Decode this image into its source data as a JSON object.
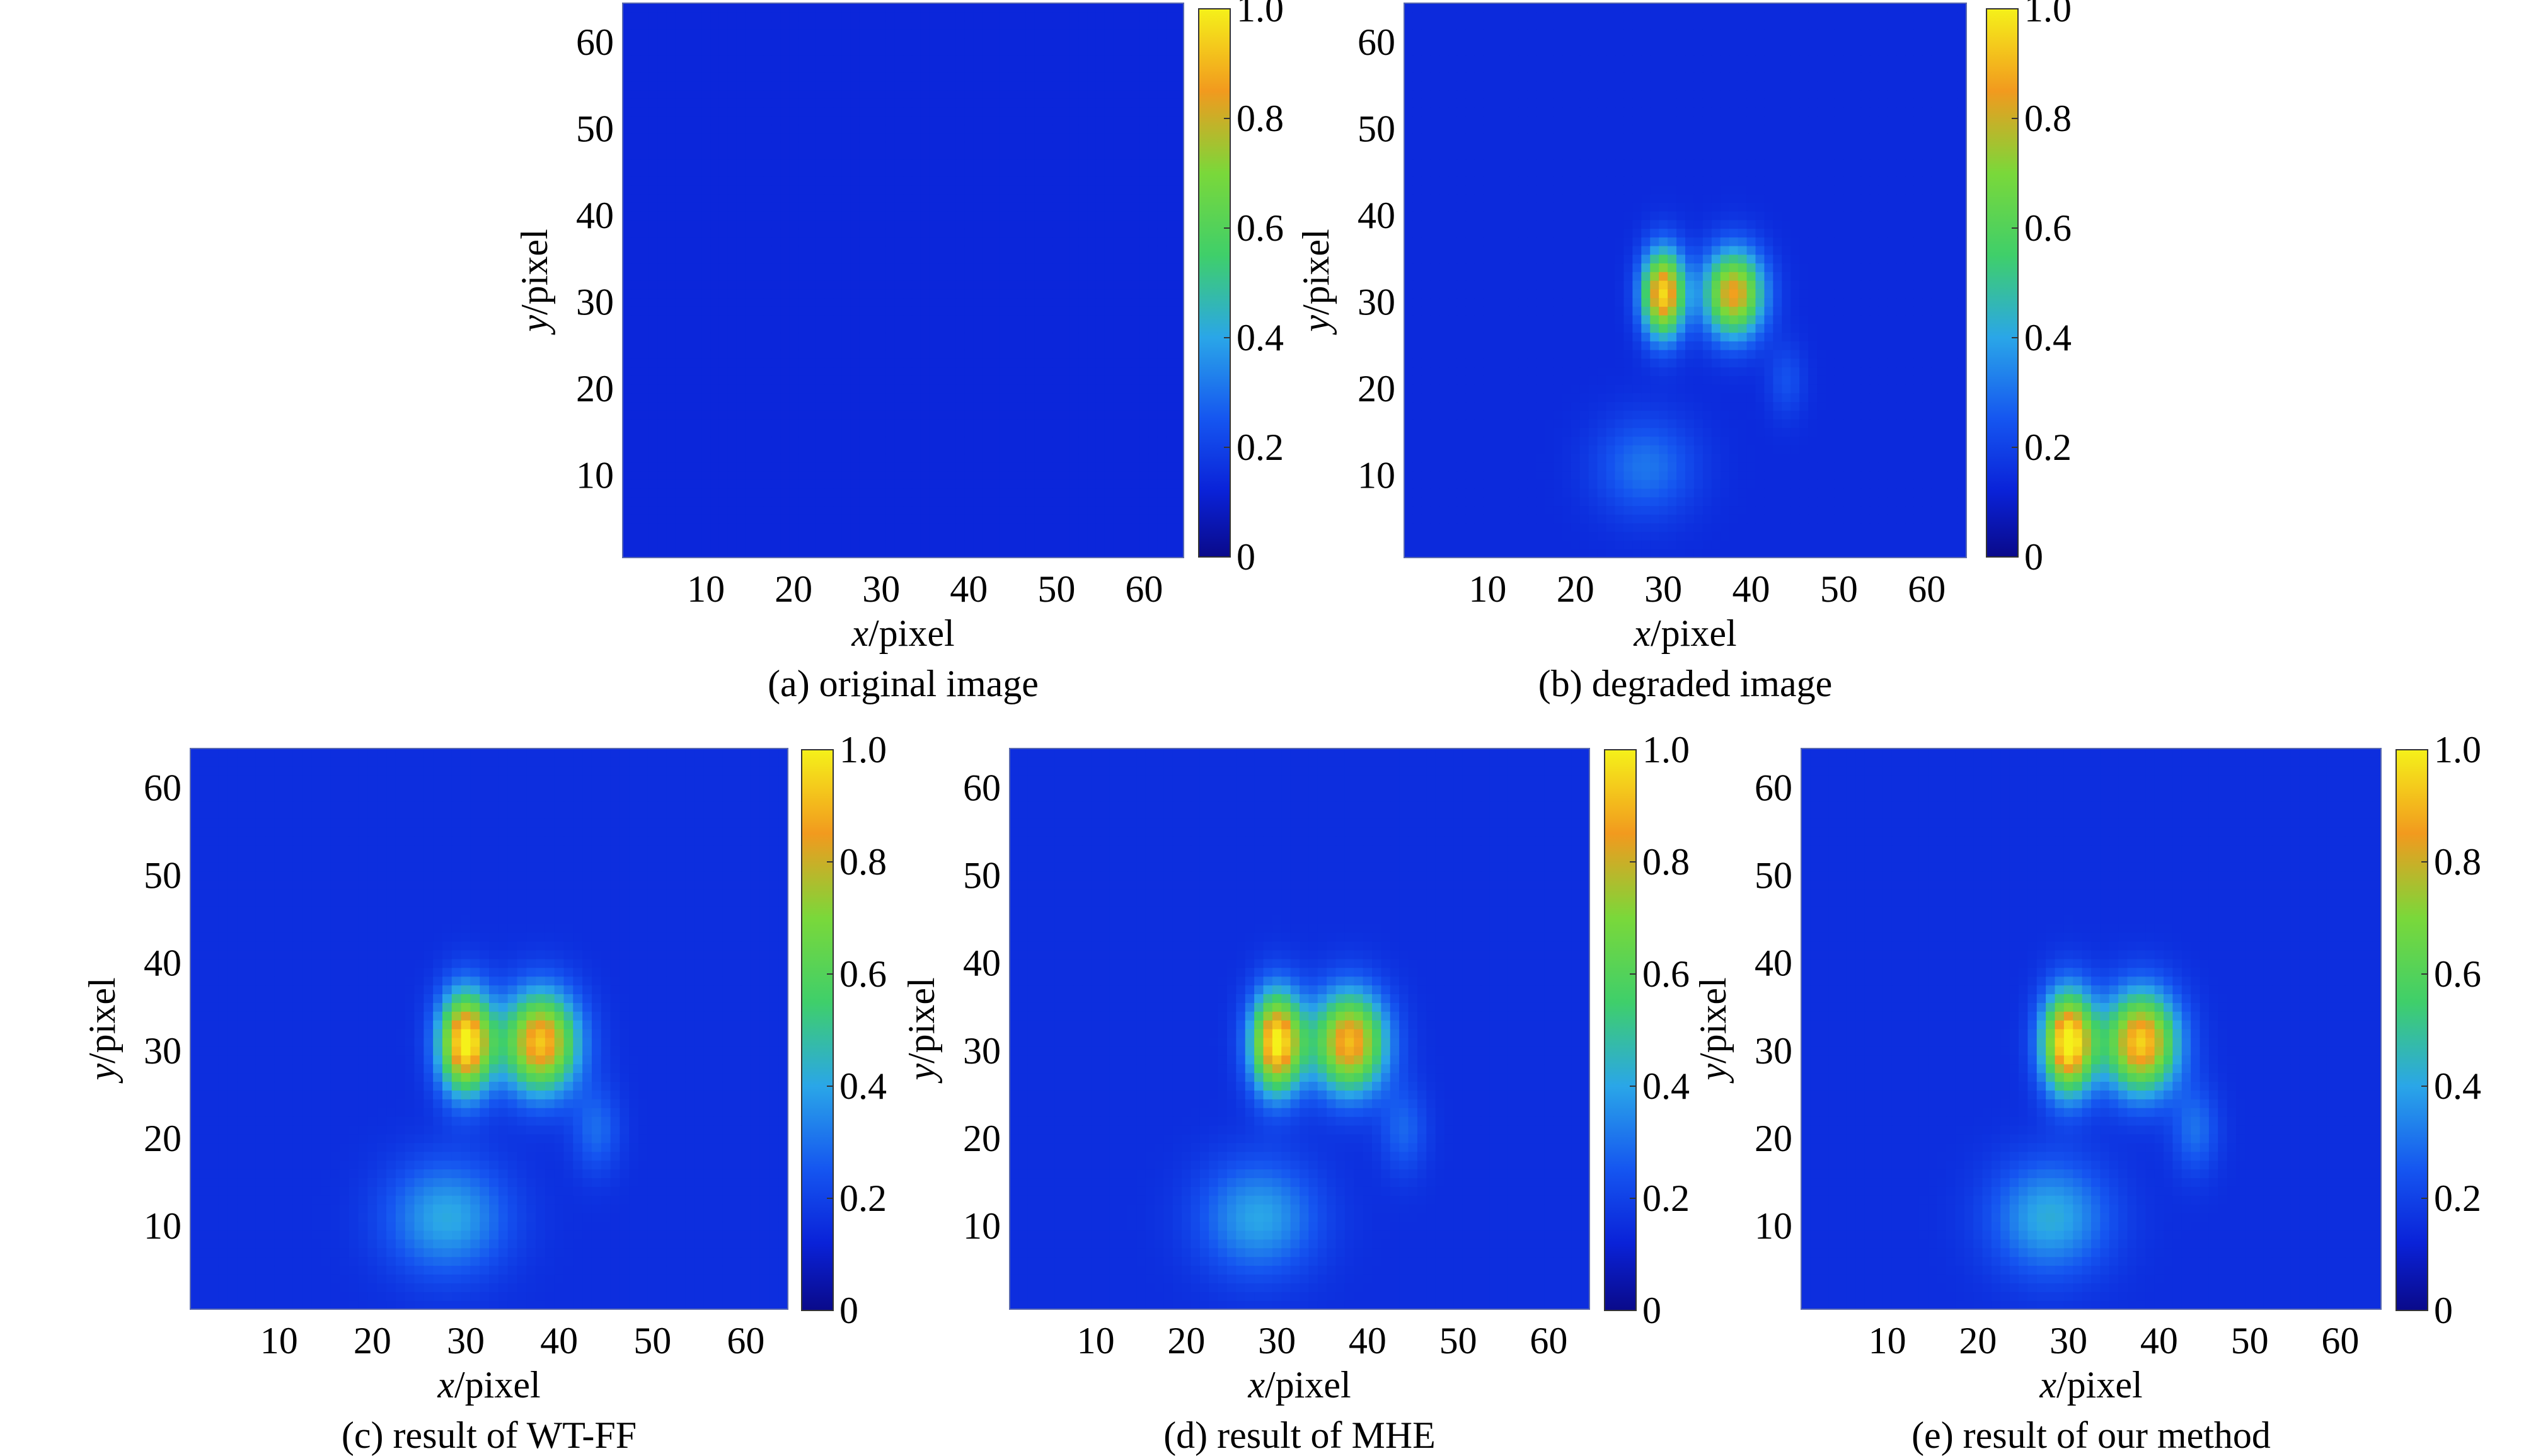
{
  "colormap": [
    {
      "stop": 0.0,
      "color": "#0a0a8a"
    },
    {
      "stop": 0.12,
      "color": "#0a22d8"
    },
    {
      "stop": 0.25,
      "color": "#1555f0"
    },
    {
      "stop": 0.4,
      "color": "#2aa6e8"
    },
    {
      "stop": 0.55,
      "color": "#3fcf6a"
    },
    {
      "stop": 0.7,
      "color": "#7ad83a"
    },
    {
      "stop": 0.85,
      "color": "#f29a1e"
    },
    {
      "stop": 1.0,
      "color": "#f5f11a"
    }
  ],
  "chart_data": [
    {
      "type": "heatmap",
      "caption": "(a) original image",
      "xlabel_italic": "x",
      "xlabel_rest": "/pixel",
      "ylabel_italic": "y",
      "ylabel_rest": "/pixel",
      "xticks": [
        "10",
        "20",
        "30",
        "40",
        "50",
        "60"
      ],
      "yticks": [
        "10",
        "20",
        "30",
        "40",
        "50",
        "60"
      ],
      "xlim": [
        0.5,
        64.5
      ],
      "ylim": [
        0.5,
        64.5
      ],
      "colorbar_ticks": [
        "0",
        "0.2",
        "0.4",
        "0.6",
        "0.8",
        "1.0"
      ],
      "colorbar_range": [
        0,
        1
      ],
      "background_level": 0.13,
      "blobs": []
    },
    {
      "type": "heatmap",
      "caption": "(b) degraded image",
      "xlabel_italic": "x",
      "xlabel_rest": "/pixel",
      "ylabel_italic": "y",
      "ylabel_rest": "/pixel",
      "xticks": [
        "10",
        "20",
        "30",
        "40",
        "50",
        "60"
      ],
      "yticks": [
        "10",
        "20",
        "30",
        "40",
        "50",
        "60"
      ],
      "xlim": [
        0.5,
        64.5
      ],
      "ylim": [
        0.5,
        64.5
      ],
      "colorbar_ticks": [
        "0",
        "0.2",
        "0.4",
        "0.6",
        "0.8",
        "1.0"
      ],
      "colorbar_range": [
        0,
        1
      ],
      "background_level": 0.14,
      "blobs": [
        {
          "x": 30,
          "y": 31,
          "sx": 1.7,
          "sy": 3.5,
          "peak": 0.82
        },
        {
          "x": 38,
          "y": 31,
          "sx": 2.4,
          "sy": 3.5,
          "peak": 0.72
        },
        {
          "x": 28,
          "y": 11,
          "sx": 4.0,
          "sy": 4.0,
          "peak": 0.17
        },
        {
          "x": 44,
          "y": 21,
          "sx": 1.5,
          "sy": 3.0,
          "peak": 0.1
        }
      ]
    },
    {
      "type": "heatmap",
      "caption": "(c) result of WT-FF",
      "xlabel_italic": "x",
      "xlabel_rest": "/pixel",
      "ylabel_italic": "y",
      "ylabel_rest": "/pixel",
      "xticks": [
        "10",
        "20",
        "30",
        "40",
        "50",
        "60"
      ],
      "yticks": [
        "10",
        "20",
        "30",
        "40",
        "50",
        "60"
      ],
      "xlim": [
        0.5,
        64.5
      ],
      "ylim": [
        0.5,
        64.5
      ],
      "colorbar_ticks": [
        "0",
        "0.2",
        "0.4",
        "0.6",
        "0.8",
        "1.0"
      ],
      "colorbar_range": [
        0,
        1
      ],
      "background_level": 0.15,
      "blobs": [
        {
          "x": 30,
          "y": 31,
          "sx": 2.0,
          "sy": 4.0,
          "peak": 0.88
        },
        {
          "x": 38,
          "y": 31,
          "sx": 2.8,
          "sy": 4.0,
          "peak": 0.78
        },
        {
          "x": 28,
          "y": 11,
          "sx": 4.5,
          "sy": 4.5,
          "peak": 0.26
        },
        {
          "x": 44,
          "y": 21,
          "sx": 1.8,
          "sy": 3.5,
          "peak": 0.14
        }
      ]
    },
    {
      "type": "heatmap",
      "caption": "(d) result of MHE",
      "xlabel_italic": "x",
      "xlabel_rest": "/pixel",
      "ylabel_italic": "y",
      "ylabel_rest": "/pixel",
      "xticks": [
        "10",
        "20",
        "30",
        "40",
        "50",
        "60"
      ],
      "yticks": [
        "10",
        "20",
        "30",
        "40",
        "50",
        "60"
      ],
      "xlim": [
        0.5,
        64.5
      ],
      "ylim": [
        0.5,
        64.5
      ],
      "colorbar_ticks": [
        "0",
        "0.2",
        "0.4",
        "0.6",
        "0.8",
        "1.0"
      ],
      "colorbar_range": [
        0,
        1
      ],
      "background_level": 0.15,
      "blobs": [
        {
          "x": 30,
          "y": 31,
          "sx": 2.0,
          "sy": 4.0,
          "peak": 0.86
        },
        {
          "x": 38,
          "y": 31,
          "sx": 2.8,
          "sy": 4.0,
          "peak": 0.76
        },
        {
          "x": 28,
          "y": 11,
          "sx": 4.5,
          "sy": 4.5,
          "peak": 0.25
        },
        {
          "x": 44,
          "y": 21,
          "sx": 1.8,
          "sy": 3.5,
          "peak": 0.13
        }
      ]
    },
    {
      "type": "heatmap",
      "caption": "(e) result of our method",
      "xlabel_italic": "x",
      "xlabel_rest": "/pixel",
      "ylabel_italic": "y",
      "ylabel_rest": "/pixel",
      "xticks": [
        "10",
        "20",
        "30",
        "40",
        "50",
        "60"
      ],
      "yticks": [
        "10",
        "20",
        "30",
        "40",
        "50",
        "60"
      ],
      "xlim": [
        0.5,
        64.5
      ],
      "ylim": [
        0.5,
        64.5
      ],
      "colorbar_ticks": [
        "0",
        "0.2",
        "0.4",
        "0.6",
        "0.8",
        "1.0"
      ],
      "colorbar_range": [
        0,
        1
      ],
      "background_level": 0.15,
      "blobs": [
        {
          "x": 30,
          "y": 31,
          "sx": 2.0,
          "sy": 4.0,
          "peak": 0.9
        },
        {
          "x": 38,
          "y": 31,
          "sx": 2.8,
          "sy": 4.0,
          "peak": 0.8
        },
        {
          "x": 28,
          "y": 11,
          "sx": 4.5,
          "sy": 4.5,
          "peak": 0.27
        },
        {
          "x": 44,
          "y": 21,
          "sx": 1.8,
          "sy": 3.5,
          "peak": 0.15
        }
      ]
    }
  ]
}
